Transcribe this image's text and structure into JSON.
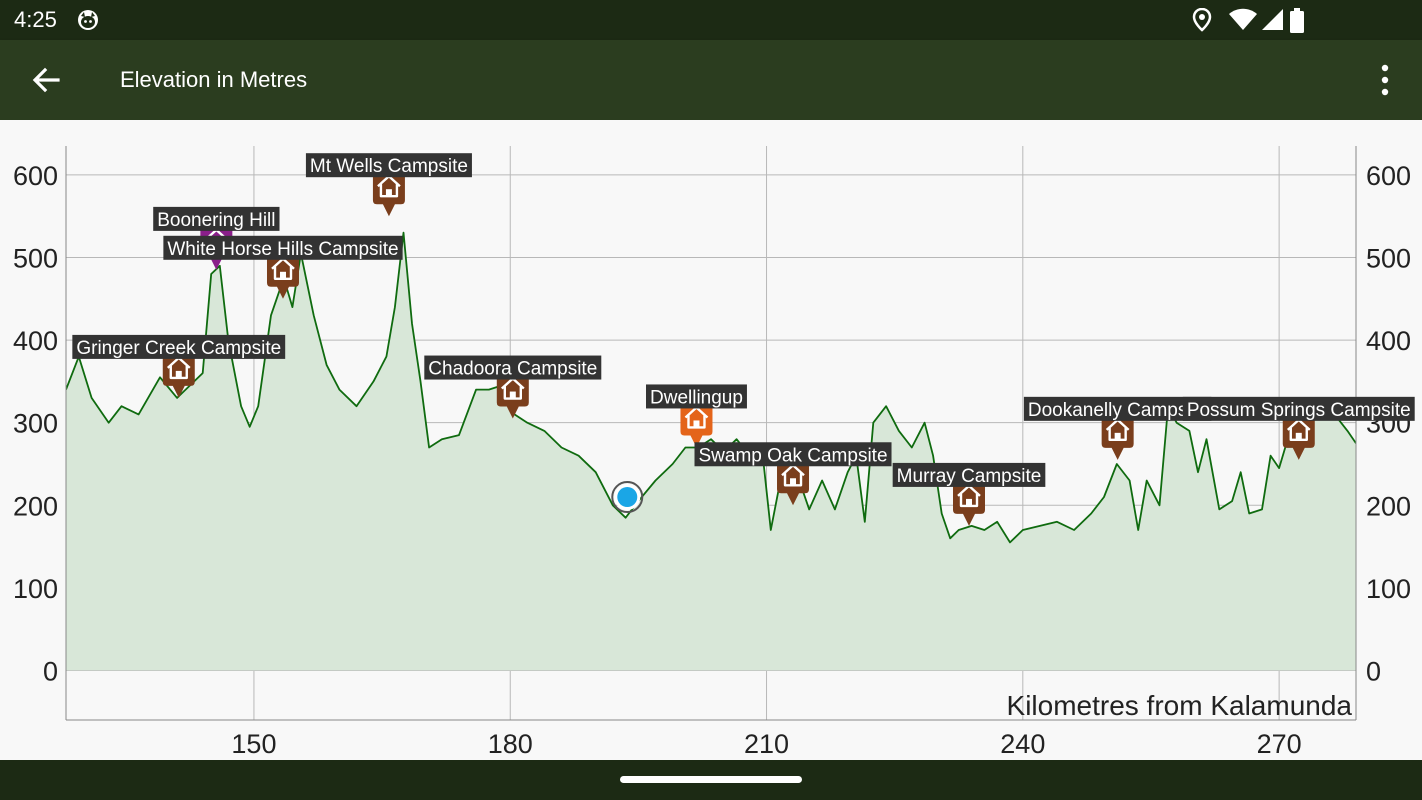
{
  "status_bar": {
    "time": "4:25",
    "app_icon": "cat-face-icon",
    "icons": [
      "location-icon",
      "wifi-icon",
      "cell-signal-icon",
      "battery-icon"
    ]
  },
  "app_bar": {
    "back_icon": "arrow-back-icon",
    "title": "Elevation in Metres",
    "menu_icon": "more-vert-icon"
  },
  "colors": {
    "status_bar": "#1c2a14",
    "app_bar": "#2b3d1f",
    "line": "#0f6b0f",
    "fill": "#d8e7d8",
    "campsite_marker": "#7a3e1c",
    "town_marker": "#e4641a",
    "hill_marker": "#8a1f8a",
    "label_bg": "#333333",
    "location_dot": "#1aa6e6"
  },
  "chart_data": {
    "type": "area",
    "xlabel": "Kilometres from Kalamunda",
    "ylabel": "",
    "xlim": [
      128,
      279
    ],
    "ylim": [
      -60,
      635
    ],
    "x_ticks": [
      150,
      180,
      210,
      240,
      270
    ],
    "y_ticks": [
      0,
      100,
      200,
      300,
      400,
      500,
      600
    ],
    "grid": true,
    "series": [
      {
        "x": [
          128,
          129.5,
          131,
          133,
          134.5,
          136.5,
          139,
          141,
          142.5,
          144,
          145,
          146,
          147,
          148.5,
          149.5,
          150.5,
          152,
          153.5,
          154.5,
          155.5,
          157,
          158.5,
          160,
          162,
          164,
          165.5,
          166.5,
          167.5,
          168.5,
          169.5,
          170.5,
          172,
          174,
          176,
          177.5,
          179,
          180.5,
          182,
          184,
          186,
          188,
          190,
          192,
          193.5,
          195,
          197,
          199,
          200.5,
          202,
          203.5,
          205,
          206.5,
          208,
          209.5,
          210.5,
          212,
          213.5,
          215,
          216.5,
          218,
          219.5,
          220.5,
          221.5,
          222.5,
          224,
          225.5,
          227,
          228.5,
          229.5,
          230.5,
          231.5,
          232.5,
          234,
          235.5,
          237,
          238.5,
          240,
          242,
          244,
          246,
          248,
          249.5,
          251,
          252.5,
          253.5,
          254.5,
          256,
          257,
          258,
          259.5,
          260.5,
          261.5,
          263,
          264.5,
          265.5,
          266.5,
          268,
          269,
          270,
          271,
          272.5,
          273.5,
          275,
          276.5,
          278,
          279
        ],
        "y": [
          340,
          380,
          330,
          300,
          320,
          310,
          355,
          330,
          345,
          360,
          480,
          490,
          400,
          320,
          295,
          320,
          430,
          475,
          440,
          505,
          430,
          370,
          340,
          320,
          350,
          380,
          440,
          530,
          420,
          350,
          270,
          280,
          285,
          340,
          340,
          345,
          310,
          300,
          290,
          270,
          260,
          240,
          200,
          185,
          205,
          230,
          250,
          270,
          270,
          280,
          265,
          280,
          260,
          265,
          170,
          250,
          240,
          195,
          230,
          195,
          240,
          260,
          180,
          300,
          320,
          290,
          270,
          300,
          260,
          190,
          160,
          170,
          175,
          170,
          180,
          155,
          170,
          175,
          180,
          170,
          190,
          210,
          250,
          230,
          170,
          230,
          200,
          320,
          300,
          290,
          240,
          280,
          195,
          205,
          240,
          190,
          195,
          260,
          245,
          280,
          310,
          300,
          310,
          310,
          290,
          275
        ]
      }
    ],
    "markers": [
      {
        "label": "Gringer Creek Campsite",
        "x": 141.2,
        "y": 330,
        "kind": "campsite"
      },
      {
        "label": "Boonering Hill",
        "x": 145.6,
        "y": 485,
        "kind": "hill"
      },
      {
        "label": "White Horse Hills Campsite",
        "x": 153.4,
        "y": 450,
        "kind": "campsite"
      },
      {
        "label": "Mt Wells Campsite",
        "x": 165.8,
        "y": 550,
        "kind": "campsite"
      },
      {
        "label": "Chadoora Campsite",
        "x": 180.3,
        "y": 305,
        "kind": "campsite"
      },
      {
        "label": "Dwellingup",
        "x": 201.8,
        "y": 270,
        "kind": "town"
      },
      {
        "label": "Swamp Oak Campsite",
        "x": 213.1,
        "y": 200,
        "kind": "campsite"
      },
      {
        "label": "Murray Campsite",
        "x": 233.7,
        "y": 175,
        "kind": "campsite"
      },
      {
        "label": "Dookanelly Campsite",
        "x": 251.1,
        "y": 255,
        "kind": "campsite"
      },
      {
        "label": "Possum Springs Campsite",
        "x": 272.3,
        "y": 255,
        "kind": "campsite"
      }
    ],
    "current_position": {
      "x": 193.7,
      "y": 210
    }
  }
}
